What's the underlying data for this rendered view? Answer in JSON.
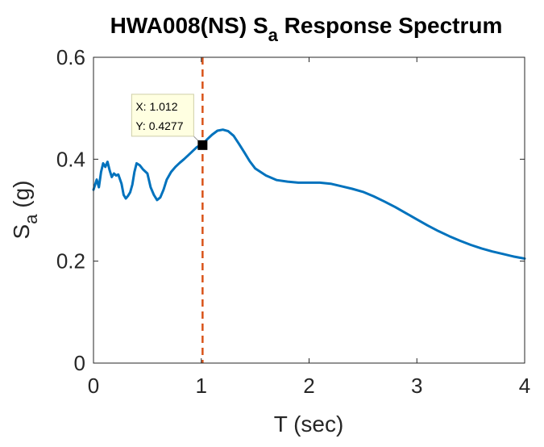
{
  "chart_data": {
    "type": "line",
    "title_main": "HWA008(NS) S",
    "title_sub": "a",
    "title_rest": " Response Spectrum",
    "xlabel": "T (sec)",
    "ylabel_main": "S",
    "ylabel_sub": "a",
    "ylabel_rest": " (g)",
    "xlim": [
      0,
      4
    ],
    "ylim": [
      0,
      0.6
    ],
    "xticks": [
      0,
      1,
      2,
      3,
      4
    ],
    "xtick_labels": [
      "0",
      "1",
      "2",
      "3",
      "4"
    ],
    "yticks": [
      0,
      0.2,
      0.4,
      0.6
    ],
    "ytick_labels": [
      "0",
      "0.2",
      "0.4",
      "0.6"
    ],
    "grid": false,
    "series": [
      {
        "color": "#0072BD",
        "x": [
          0.0,
          0.03,
          0.05,
          0.07,
          0.09,
          0.11,
          0.13,
          0.15,
          0.17,
          0.19,
          0.21,
          0.23,
          0.26,
          0.28,
          0.3,
          0.32,
          0.34,
          0.36,
          0.38,
          0.4,
          0.43,
          0.46,
          0.5,
          0.53,
          0.56,
          0.59,
          0.62,
          0.65,
          0.68,
          0.72,
          0.76,
          0.8,
          0.84,
          0.88,
          0.92,
          0.96,
          1.0,
          1.012,
          1.05,
          1.1,
          1.15,
          1.2,
          1.25,
          1.3,
          1.35,
          1.4,
          1.45,
          1.5,
          1.6,
          1.7,
          1.8,
          1.9,
          2.0,
          2.1,
          2.2,
          2.3,
          2.4,
          2.5,
          2.6,
          2.7,
          2.8,
          2.9,
          3.0,
          3.1,
          3.2,
          3.3,
          3.4,
          3.5,
          3.6,
          3.7,
          3.8,
          3.9,
          4.0
        ],
        "y": [
          0.34,
          0.36,
          0.345,
          0.375,
          0.392,
          0.385,
          0.395,
          0.378,
          0.365,
          0.372,
          0.368,
          0.37,
          0.352,
          0.33,
          0.323,
          0.328,
          0.335,
          0.35,
          0.375,
          0.392,
          0.388,
          0.38,
          0.372,
          0.345,
          0.33,
          0.32,
          0.325,
          0.34,
          0.36,
          0.375,
          0.385,
          0.393,
          0.4,
          0.408,
          0.416,
          0.424,
          0.428,
          0.4277,
          0.438,
          0.448,
          0.456,
          0.458,
          0.455,
          0.446,
          0.43,
          0.413,
          0.396,
          0.382,
          0.368,
          0.359,
          0.356,
          0.354,
          0.354,
          0.354,
          0.352,
          0.347,
          0.342,
          0.336,
          0.327,
          0.317,
          0.306,
          0.294,
          0.282,
          0.27,
          0.259,
          0.249,
          0.24,
          0.232,
          0.225,
          0.219,
          0.214,
          0.209,
          0.205
        ]
      }
    ],
    "reference_line": {
      "x": 1.012,
      "color": "#D95319",
      "style": "dashed"
    },
    "datatip": {
      "x": 1.012,
      "y": 0.4277,
      "x_label": "X: 1.012",
      "y_label": "Y: 0.4277",
      "background": "#FFFFE1"
    }
  }
}
